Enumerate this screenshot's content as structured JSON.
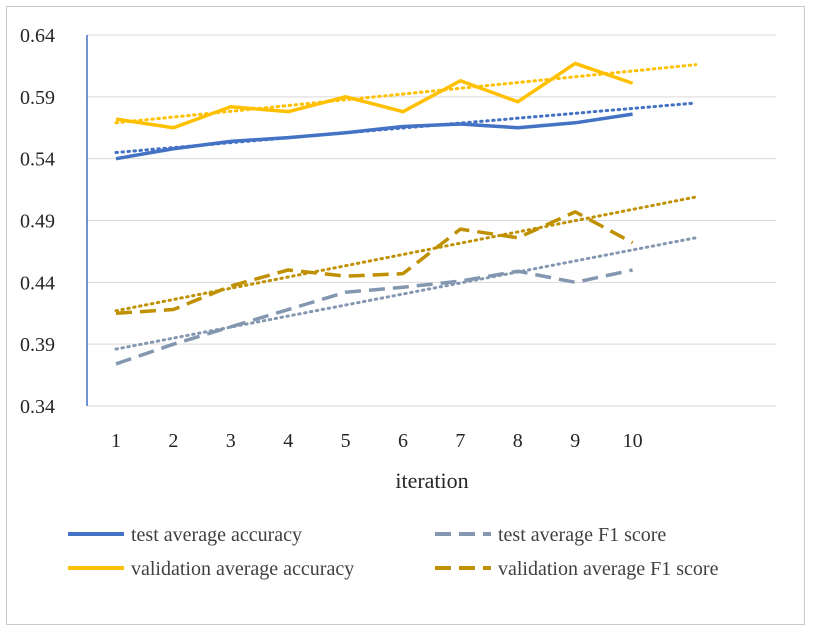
{
  "chart_data": {
    "type": "line",
    "title": "",
    "xlabel": "iteration",
    "ylabel": "",
    "ylim": [
      0.34,
      0.64
    ],
    "yticks": [
      "0.34",
      "0.39",
      "0.44",
      "0.49",
      "0.54",
      "0.59",
      "0.64"
    ],
    "categories": [
      "1",
      "2",
      "3",
      "4",
      "5",
      "6",
      "7",
      "8",
      "9",
      "10"
    ],
    "x_extent": 11.1,
    "grid": "horizontal",
    "legend_position": "bottom",
    "series": [
      {
        "name": "test average accuracy",
        "color": "#4472c4",
        "style": "solid",
        "values": [
          0.54,
          0.548,
          0.554,
          0.557,
          0.561,
          0.566,
          0.568,
          0.565,
          0.569,
          0.576
        ],
        "trendline": [
          0.545,
          0.585
        ]
      },
      {
        "name": "test average F1 score",
        "color": "#8497b0",
        "style": "dashed",
        "values": [
          0.374,
          0.39,
          0.404,
          0.418,
          0.432,
          0.436,
          0.441,
          0.449,
          0.44,
          0.45
        ],
        "trendline": [
          0.386,
          0.476
        ]
      },
      {
        "name": "validation average accuracy",
        "color": "#ffc000",
        "style": "solid",
        "values": [
          0.572,
          0.565,
          0.582,
          0.578,
          0.59,
          0.578,
          0.603,
          0.586,
          0.617,
          0.601
        ],
        "trendline": [
          0.569,
          0.616
        ]
      },
      {
        "name": "validation average F1 score",
        "color": "#bf9000",
        "style": "dashed",
        "values": [
          0.415,
          0.418,
          0.437,
          0.45,
          0.445,
          0.447,
          0.483,
          0.476,
          0.497,
          0.472
        ],
        "trendline": [
          0.417,
          0.509
        ]
      }
    ]
  }
}
